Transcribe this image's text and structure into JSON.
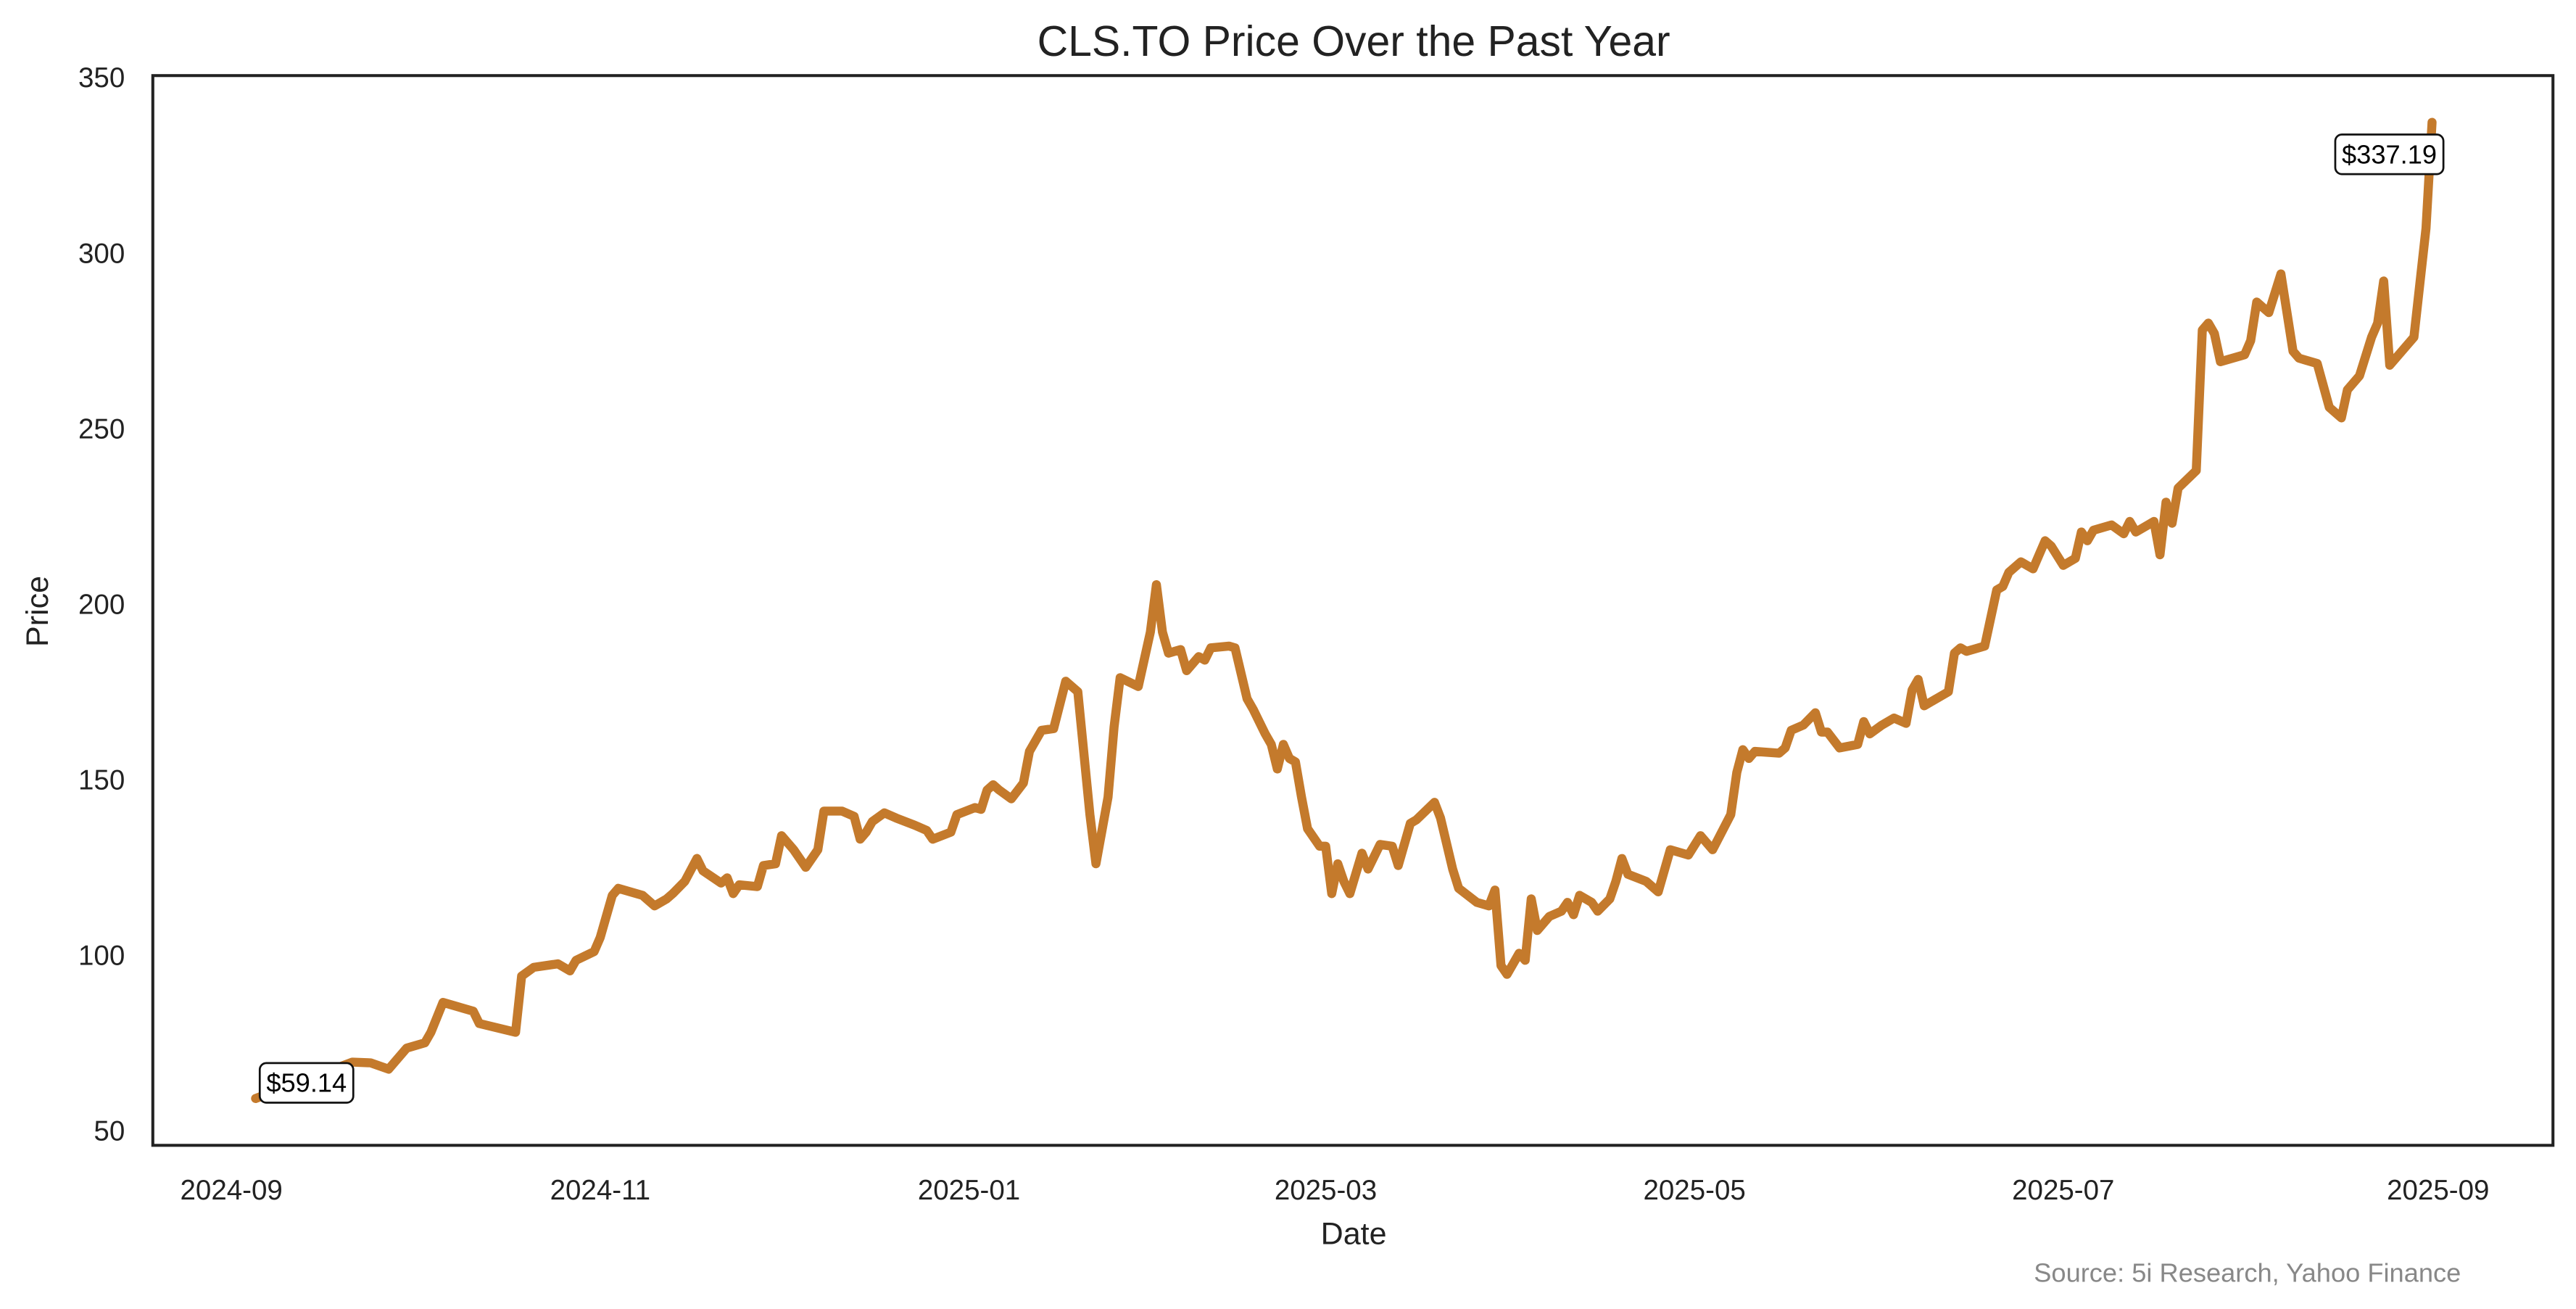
{
  "chart_data": {
    "type": "line",
    "title": "CLS.TO Price Over the Past Year",
    "xlabel": "Date",
    "ylabel": "Price",
    "source": "Source: 5i Research, Yahoo Finance",
    "color": "#c47a2c",
    "xlim": [
      "2024-08-19",
      "2025-09-20"
    ],
    "xticks": [
      {
        "value": "2024-09-01",
        "label": "2024-09"
      },
      {
        "value": "2024-11-01",
        "label": "2024-11"
      },
      {
        "value": "2025-01-01",
        "label": "2025-01"
      },
      {
        "value": "2025-03-01",
        "label": "2025-03"
      },
      {
        "value": "2025-05-01",
        "label": "2025-05"
      },
      {
        "value": "2025-07-01",
        "label": "2025-07"
      },
      {
        "value": "2025-09-01",
        "label": "2025-09"
      }
    ],
    "ylim": [
      45.8,
      350.5
    ],
    "yticks": [
      50,
      100,
      150,
      200,
      250,
      300,
      350
    ],
    "annotations": [
      "$59.14",
      "$337.19"
    ],
    "x": [
      "2024-09-05",
      "2024-09-21",
      "2024-09-24",
      "2024-09-27",
      "2024-09-30",
      "2024-10-03",
      "2024-10-04",
      "2024-10-06",
      "2024-10-11",
      "2024-10-12",
      "2024-10-18",
      "2024-10-19",
      "2024-10-21",
      "2024-10-25",
      "2024-10-27",
      "2024-10-28",
      "2024-10-31",
      "2024-11-01",
      "2024-11-03",
      "2024-11-04",
      "2024-11-08",
      "2024-11-10",
      "2024-11-12",
      "2024-11-13",
      "2024-11-15",
      "2024-11-17",
      "2024-11-18",
      "2024-11-21",
      "2024-11-22",
      "2024-11-23",
      "2024-11-24",
      "2024-11-27",
      "2024-11-28",
      "2024-11-30",
      "2024-12-01",
      "2024-12-03",
      "2024-12-05",
      "2024-12-07",
      "2024-12-08",
      "2024-12-11",
      "2024-12-13",
      "2024-12-14",
      "2024-12-15",
      "2024-12-16",
      "2024-12-18",
      "2024-12-20",
      "2024-12-23",
      "2024-12-25",
      "2024-12-26",
      "2024-12-29",
      "2024-12-30",
      "2025-01-02",
      "2025-01-03",
      "2025-01-04",
      "2025-01-05",
      "2025-01-06",
      "2025-01-08",
      "2025-01-10",
      "2025-01-11",
      "2025-01-13",
      "2025-01-15",
      "2025-01-17",
      "2025-01-19",
      "2025-01-21",
      "2025-01-22",
      "2025-01-24",
      "2025-01-25",
      "2025-01-26",
      "2025-01-29",
      "2025-01-31",
      "2025-02-01",
      "2025-02-02",
      "2025-02-03",
      "2025-02-05",
      "2025-02-06",
      "2025-02-08",
      "2025-02-09",
      "2025-02-10",
      "2025-02-13",
      "2025-02-14",
      "2025-02-16",
      "2025-02-17",
      "2025-02-19",
      "2025-02-20",
      "2025-02-21",
      "2025-02-22",
      "2025-02-23",
      "2025-02-24",
      "2025-02-25",
      "2025-02-26",
      "2025-02-28",
      "2025-03-01",
      "2025-03-02",
      "2025-03-03",
      "2025-03-04",
      "2025-03-05",
      "2025-03-07",
      "2025-03-08",
      "2025-03-10",
      "2025-03-12",
      "2025-03-13",
      "2025-03-15",
      "2025-03-16",
      "2025-03-19",
      "2025-03-20",
      "2025-03-22",
      "2025-03-23",
      "2025-03-26",
      "2025-03-28",
      "2025-03-29",
      "2025-03-30",
      "2025-03-31",
      "2025-04-02",
      "2025-04-03",
      "2025-04-04",
      "2025-04-05",
      "2025-04-07",
      "2025-04-09",
      "2025-04-10",
      "2025-04-11",
      "2025-04-12",
      "2025-04-14",
      "2025-04-15",
      "2025-04-17",
      "2025-04-18",
      "2025-04-19",
      "2025-04-20",
      "2025-04-23",
      "2025-04-25",
      "2025-04-27",
      "2025-04-30",
      "2025-05-02",
      "2025-05-04",
      "2025-05-07",
      "2025-05-08",
      "2025-05-09",
      "2025-05-10",
      "2025-05-11",
      "2025-05-15",
      "2025-05-16",
      "2025-05-17",
      "2025-05-19",
      "2025-05-21",
      "2025-05-22",
      "2025-05-23",
      "2025-05-25",
      "2025-05-28",
      "2025-05-29",
      "2025-05-30",
      "2025-06-01",
      "2025-06-03",
      "2025-06-05",
      "2025-06-06",
      "2025-06-07",
      "2025-06-08",
      "2025-06-12",
      "2025-06-13",
      "2025-06-14",
      "2025-06-15",
      "2025-06-18",
      "2025-06-20",
      "2025-06-21",
      "2025-06-22",
      "2025-06-24",
      "2025-06-26",
      "2025-06-28",
      "2025-06-29",
      "2025-07-01",
      "2025-07-03",
      "2025-07-04",
      "2025-07-05",
      "2025-07-06",
      "2025-07-09",
      "2025-07-11",
      "2025-07-12",
      "2025-07-13",
      "2025-07-16",
      "2025-07-17",
      "2025-07-18",
      "2025-07-19",
      "2025-07-20",
      "2025-07-23",
      "2025-07-24",
      "2025-07-25",
      "2025-07-26",
      "2025-07-27",
      "2025-07-31",
      "2025-08-01",
      "2025-08-02",
      "2025-08-04",
      "2025-08-06",
      "2025-08-08",
      "2025-08-09",
      "2025-08-12",
      "2025-08-14",
      "2025-08-16",
      "2025-08-17",
      "2025-08-19",
      "2025-08-21",
      "2025-08-22",
      "2025-08-23",
      "2025-08-24",
      "2025-08-28",
      "2025-08-30",
      "2025-08-31"
    ],
    "values": [
      59.14,
      69.5,
      69.3,
      67.5,
      73.5,
      75,
      78,
      86.5,
      84,
      80.5,
      78,
      94,
      96.5,
      97.5,
      95.5,
      98.5,
      101,
      105,
      117,
      119,
      117,
      114,
      116,
      117.5,
      121,
      127.5,
      124,
      120.5,
      122,
      117.5,
      120,
      119.5,
      125.5,
      126,
      134,
      130,
      125,
      130,
      141,
      141,
      139.5,
      133,
      135,
      138,
      140.5,
      139,
      137,
      135.5,
      133,
      135,
      140,
      142,
      141.5,
      147,
      148.5,
      147,
      144.5,
      149,
      158,
      164,
      164.5,
      178,
      175,
      140,
      126,
      145,
      165,
      179,
      176.5,
      192,
      205.5,
      192,
      186,
      187,
      181,
      185,
      184,
      187.5,
      188,
      187.5,
      173,
      170,
      163,
      160,
      153,
      160,
      156,
      155,
      145,
      136,
      131,
      131,
      117.5,
      126,
      121,
      117.5,
      129,
      124.5,
      131.5,
      131,
      125.5,
      137.5,
      138.5,
      143.5,
      139,
      124.5,
      119,
      115,
      114,
      118.5,
      97,
      94.5,
      100.5,
      98.5,
      116,
      107,
      111,
      112.5,
      115,
      111.5,
      117,
      115,
      112.5,
      116,
      121,
      127.5,
      123,
      121,
      118,
      130,
      128.5,
      134,
      130,
      140,
      152,
      158.5,
      156,
      158,
      157.5,
      159,
      164,
      165.5,
      169,
      163.5,
      163.5,
      159,
      160,
      166.5,
      163,
      165.5,
      167.5,
      166,
      175.5,
      178.5,
      171,
      175,
      186,
      187.5,
      186.5,
      188,
      204,
      205,
      209,
      212,
      210,
      218,
      216.5,
      211,
      213,
      220.5,
      218,
      221,
      222.5,
      220,
      223.5,
      220.5,
      223.5,
      214,
      229,
      223,
      233,
      238,
      278,
      280,
      277,
      269,
      271,
      275,
      286,
      283,
      294,
      272,
      270,
      268.5,
      256,
      253,
      261,
      265,
      276,
      280,
      292,
      268,
      276,
      307,
      337.19
    ]
  }
}
